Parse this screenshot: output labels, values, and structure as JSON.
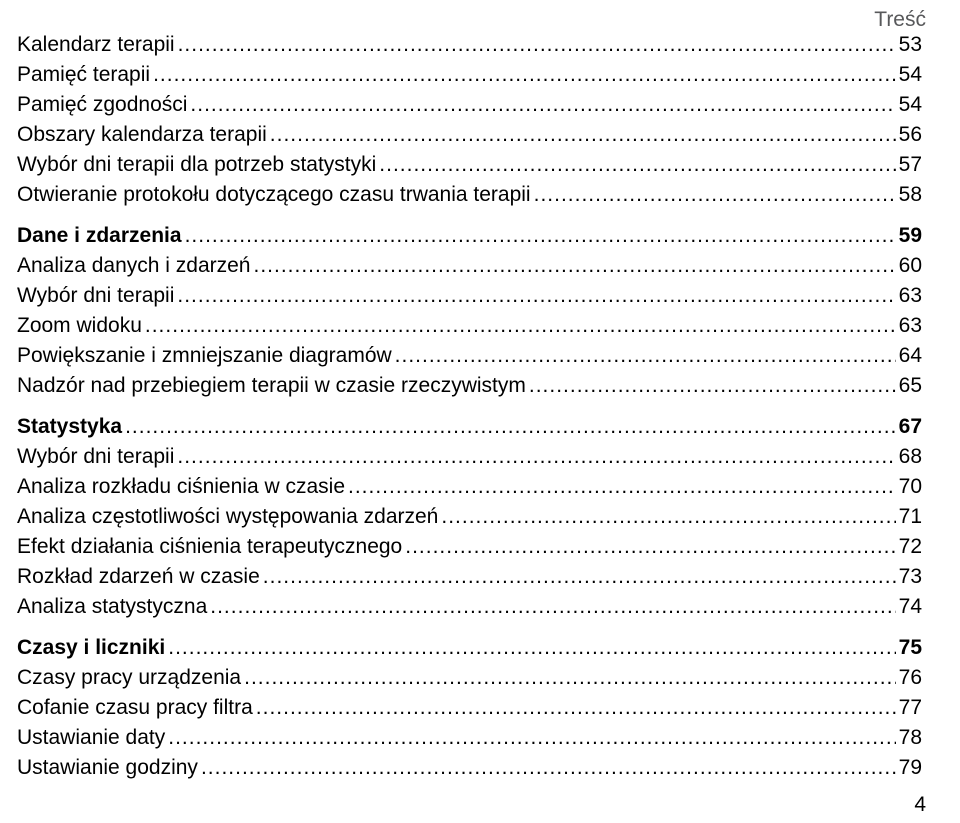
{
  "header": {
    "corner_label": "Treść"
  },
  "toc": {
    "entries": [
      {
        "label": "Kalendarz terapii",
        "page": "53",
        "section": false,
        "group_start": false
      },
      {
        "label": "Pamięć terapii",
        "page": "54",
        "section": false,
        "group_start": false
      },
      {
        "label": "Pamięć zgodności",
        "page": "54",
        "section": false,
        "group_start": false
      },
      {
        "label": "Obszary kalendarza terapii",
        "page": "56",
        "section": false,
        "group_start": false
      },
      {
        "label": "Wybór dni terapii dla potrzeb statystyki",
        "page": "57",
        "section": false,
        "group_start": false
      },
      {
        "label": "Otwieranie protokołu dotyczącego czasu trwania terapii",
        "page": "58",
        "section": false,
        "group_start": false
      },
      {
        "label": "Dane i zdarzenia",
        "page": "59",
        "section": true,
        "group_start": true
      },
      {
        "label": "Analiza danych i zdarzeń",
        "page": "60",
        "section": false,
        "group_start": false
      },
      {
        "label": "Wybór dni terapii",
        "page": "63",
        "section": false,
        "group_start": false
      },
      {
        "label": "Zoom widoku",
        "page": "63",
        "section": false,
        "group_start": false
      },
      {
        "label": "Powiększanie i zmniejszanie diagramów",
        "page": "64",
        "section": false,
        "group_start": false
      },
      {
        "label": "Nadzór nad przebiegiem terapii w czasie rzeczywistym",
        "page": "65",
        "section": false,
        "group_start": false
      },
      {
        "label": "Statystyka",
        "page": "67",
        "section": true,
        "group_start": true
      },
      {
        "label": "Wybór dni terapii",
        "page": "68",
        "section": false,
        "group_start": false
      },
      {
        "label": "Analiza rozkładu ciśnienia w czasie",
        "page": "70",
        "section": false,
        "group_start": false
      },
      {
        "label": "Analiza częstotliwości występowania zdarzeń",
        "page": "71",
        "section": false,
        "group_start": false
      },
      {
        "label": "Efekt działania ciśnienia terapeutycznego",
        "page": "72",
        "section": false,
        "group_start": false
      },
      {
        "label": "Rozkład zdarzeń w czasie",
        "page": "73",
        "section": false,
        "group_start": false
      },
      {
        "label": "Analiza statystyczna",
        "page": "74",
        "section": false,
        "group_start": false
      },
      {
        "label": "Czasy i liczniki",
        "page": "75",
        "section": true,
        "group_start": true
      },
      {
        "label": "Czasy pracy urządzenia",
        "page": "76",
        "section": false,
        "group_start": false
      },
      {
        "label": "Cofanie czasu pracy filtra",
        "page": "77",
        "section": false,
        "group_start": false
      },
      {
        "label": "Ustawianie daty",
        "page": "78",
        "section": false,
        "group_start": false
      },
      {
        "label": "Ustawianie godziny",
        "page": "79",
        "section": false,
        "group_start": false
      }
    ]
  },
  "footer": {
    "page_number": "4"
  }
}
